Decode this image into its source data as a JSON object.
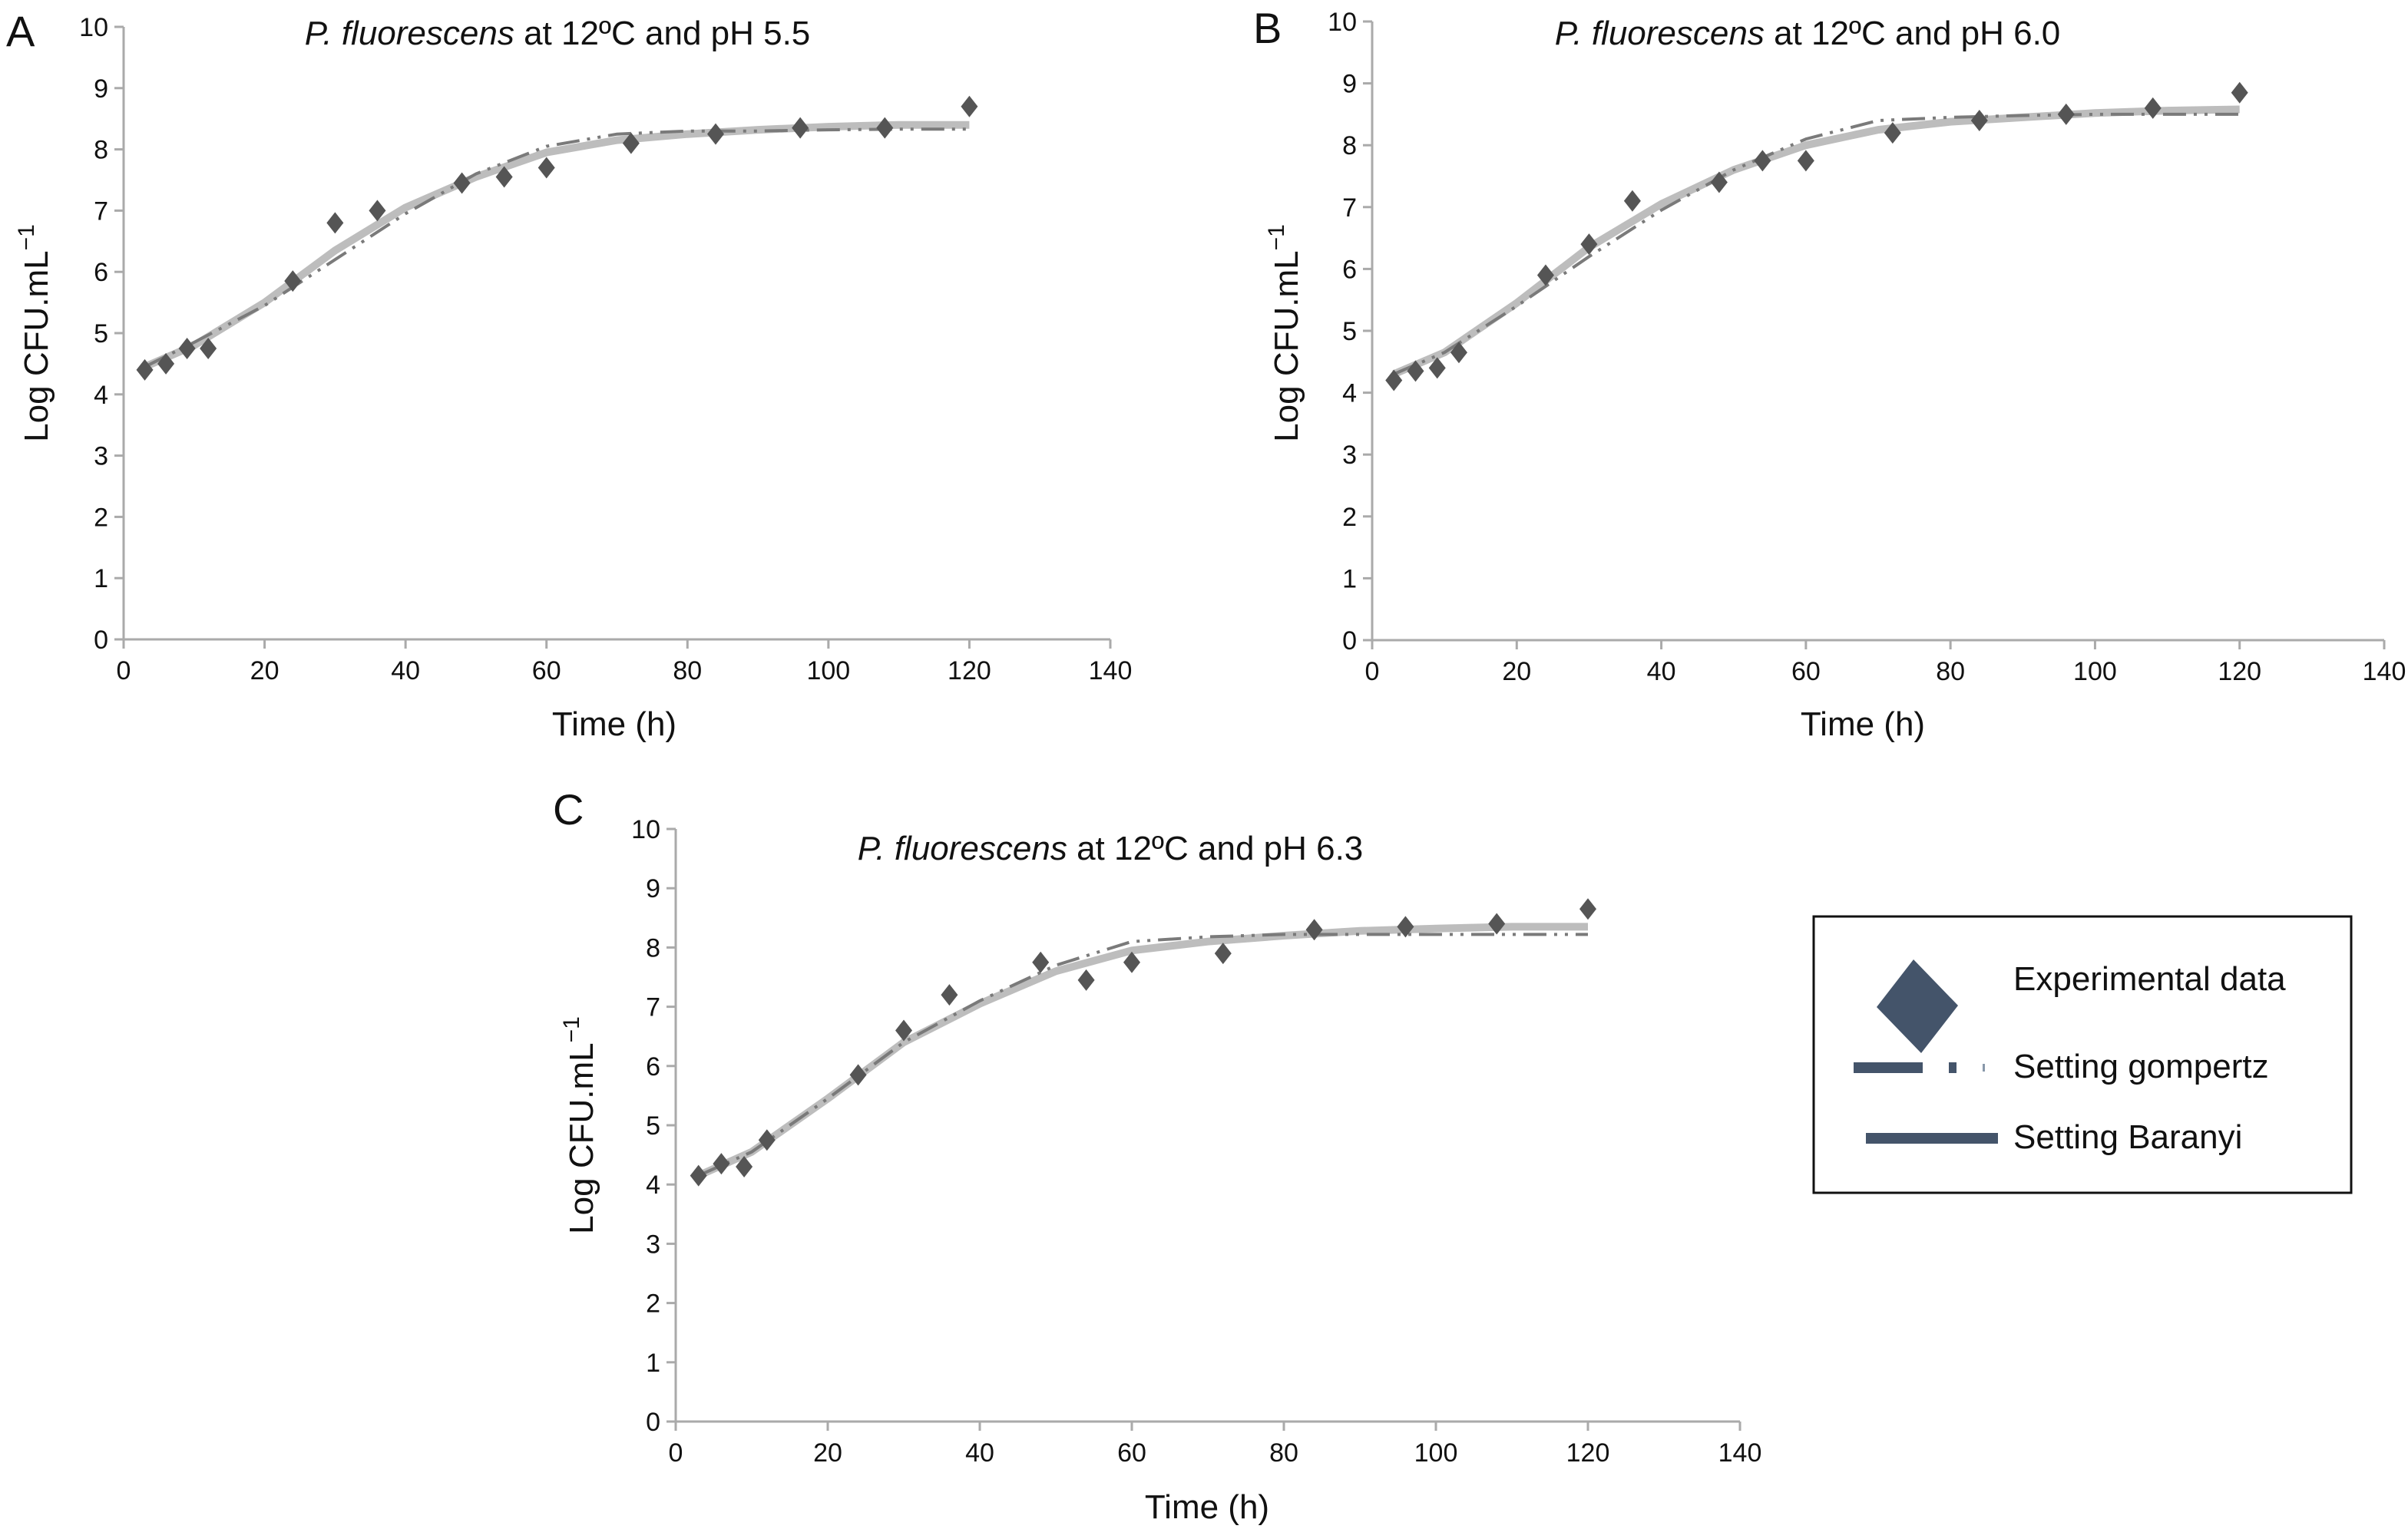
{
  "chart_data": [
    {
      "type": "scatter",
      "panel": "A",
      "title_italic": "P. fluorescens",
      "title_rest": " at 12ºC and pH 5.5",
      "xlabel": "Time (h)",
      "ylabel": "Log CFU.mL",
      "ylabel_sup": "−1",
      "xlim": [
        0,
        140
      ],
      "ylim": [
        0,
        10
      ],
      "xticks": [
        0,
        20,
        40,
        60,
        80,
        100,
        120,
        140
      ],
      "yticks": [
        0,
        1,
        2,
        3,
        4,
        5,
        6,
        7,
        8,
        9,
        10
      ],
      "grid": false,
      "x": [
        3,
        6,
        9,
        12,
        24,
        30,
        36,
        48,
        54,
        60,
        72,
        84,
        96,
        108,
        120
      ],
      "experimental": [
        4.4,
        4.5,
        4.75,
        4.75,
        5.85,
        6.8,
        7.0,
        7.45,
        7.55,
        7.7,
        8.1,
        8.25,
        8.35,
        8.35,
        8.7
      ],
      "fit_x": [
        3,
        10,
        20,
        30,
        40,
        50,
        60,
        70,
        80,
        90,
        100,
        110,
        120
      ],
      "gompertz": [
        4.45,
        4.85,
        5.45,
        6.2,
        6.95,
        7.6,
        8.05,
        8.25,
        8.3,
        8.3,
        8.32,
        8.33,
        8.33
      ],
      "baranyi": [
        4.45,
        4.8,
        5.5,
        6.35,
        7.05,
        7.55,
        7.95,
        8.15,
        8.25,
        8.32,
        8.37,
        8.4,
        8.4
      ]
    },
    {
      "type": "scatter",
      "panel": "B",
      "title_italic": "P. fluorescens",
      "title_rest": " at 12ºC and pH 6.0",
      "xlabel": "Time (h)",
      "ylabel": "Log CFU.mL",
      "ylabel_sup": "−1",
      "xlim": [
        0,
        140
      ],
      "ylim": [
        0,
        10
      ],
      "xticks": [
        0,
        20,
        40,
        60,
        80,
        100,
        120,
        140
      ],
      "yticks": [
        0,
        1,
        2,
        3,
        4,
        5,
        6,
        7,
        8,
        9,
        10
      ],
      "grid": false,
      "x": [
        3,
        6,
        9,
        12,
        24,
        30,
        36,
        48,
        54,
        60,
        72,
        84,
        96,
        108,
        120
      ],
      "experimental": [
        4.2,
        4.35,
        4.4,
        4.65,
        5.9,
        6.4,
        7.1,
        7.4,
        7.75,
        7.75,
        8.2,
        8.4,
        8.5,
        8.6,
        8.85
      ],
      "fit_x": [
        3,
        10,
        20,
        30,
        40,
        50,
        60,
        70,
        80,
        90,
        100,
        110,
        120
      ],
      "gompertz": [
        4.3,
        4.65,
        5.4,
        6.2,
        6.95,
        7.6,
        8.1,
        8.4,
        8.45,
        8.48,
        8.5,
        8.5,
        8.5
      ],
      "baranyi": [
        4.3,
        4.65,
        5.45,
        6.35,
        7.05,
        7.6,
        8.0,
        8.25,
        8.38,
        8.45,
        8.52,
        8.56,
        8.58
      ]
    },
    {
      "type": "scatter",
      "panel": "C",
      "title_italic": "P. fluorescens",
      "title_rest": " at 12ºC and pH 6.3",
      "xlabel": "Time (h)",
      "ylabel": "Log CFU.mL",
      "ylabel_sup": "−1",
      "xlim": [
        0,
        140
      ],
      "ylim": [
        0,
        10
      ],
      "xticks": [
        0,
        20,
        40,
        60,
        80,
        100,
        120,
        140
      ],
      "yticks": [
        0,
        1,
        2,
        3,
        4,
        5,
        6,
        7,
        8,
        9,
        10
      ],
      "grid": false,
      "x": [
        3,
        6,
        9,
        12,
        24,
        30,
        36,
        48,
        54,
        60,
        72,
        84,
        96,
        108,
        120
      ],
      "experimental": [
        4.15,
        4.35,
        4.3,
        4.75,
        5.85,
        6.6,
        7.2,
        7.75,
        7.45,
        7.75,
        7.9,
        8.3,
        8.35,
        8.4,
        8.65
      ],
      "fit_x": [
        3,
        10,
        20,
        30,
        40,
        50,
        60,
        70,
        80,
        90,
        100,
        110,
        120
      ],
      "gompertz": [
        4.15,
        4.55,
        5.45,
        6.4,
        7.1,
        7.7,
        8.1,
        8.18,
        8.22,
        8.22,
        8.22,
        8.22,
        8.22
      ],
      "baranyi": [
        4.15,
        4.55,
        5.45,
        6.4,
        7.05,
        7.6,
        7.95,
        8.1,
        8.2,
        8.28,
        8.32,
        8.35,
        8.35
      ]
    }
  ],
  "legend": {
    "placement": "bottom-right",
    "items": [
      {
        "label": "Experimental data",
        "icon": "diamond-marker-icon"
      },
      {
        "label": "Setting gompertz",
        "icon": "dash-dot-dot-line-icon"
      },
      {
        "label": "Setting Baranyi",
        "icon": "solid-line-icon"
      }
    ]
  },
  "colors": {
    "points": "#555555",
    "baranyi": "#bdbdbd",
    "gompertz": "#7a7a7a",
    "axis": "#aaaaaa",
    "legend_marker": "#44546a"
  }
}
